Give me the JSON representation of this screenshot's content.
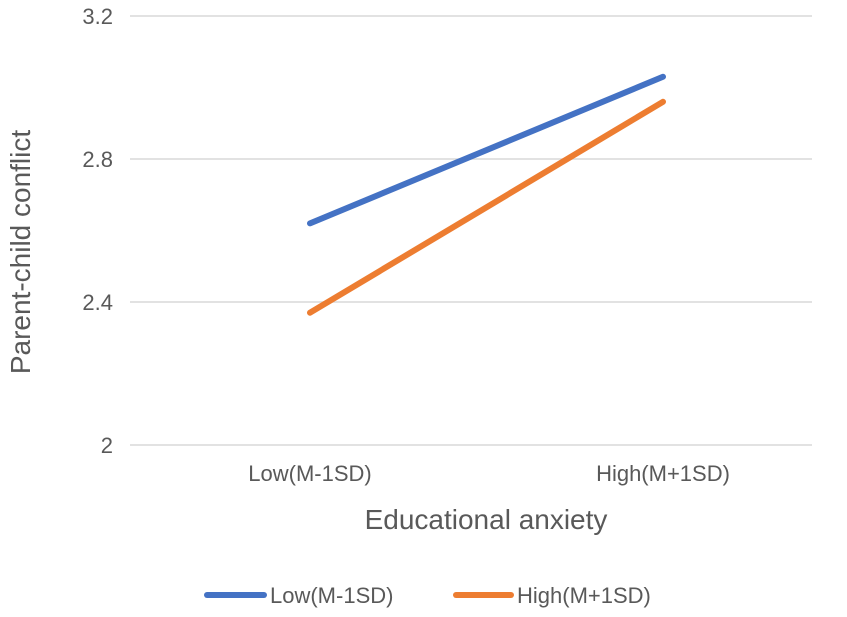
{
  "chart_data": {
    "type": "line",
    "title": "",
    "xlabel": "Educational anxiety",
    "ylabel": "Parent-child conflict",
    "categories": [
      "Low(M-1SD)",
      "High(M+1SD)"
    ],
    "ylim": [
      2,
      3.2
    ],
    "yticks": [
      "2",
      "2.4",
      "2.8",
      "3.2"
    ],
    "grid": true,
    "legend_position": "bottom",
    "series": [
      {
        "name": "Low(M-1SD)",
        "values": [
          2.62,
          3.03
        ],
        "color": "#4472c4"
      },
      {
        "name": "High(M+1SD)",
        "values": [
          2.37,
          2.96
        ],
        "color": "#ed7d31"
      }
    ]
  }
}
